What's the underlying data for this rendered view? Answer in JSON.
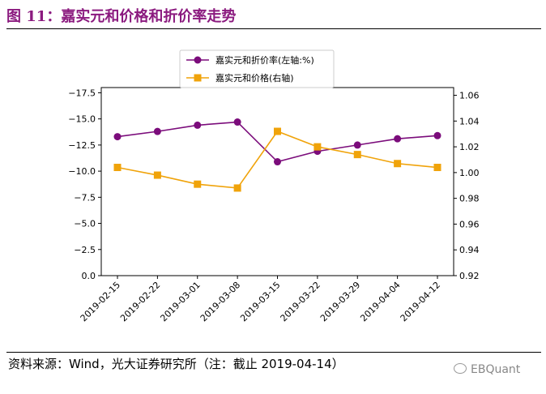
{
  "figure": {
    "title": "图 11：嘉实元和价格和折价率走势",
    "source": "资料来源：Wind，光大证券研究所（注：截止 2019-04-14）",
    "watermark": "EBQuant"
  },
  "chart_data": {
    "type": "line",
    "x": [
      "2019-02-15",
      "2019-02-22",
      "2019-03-01",
      "2019-03-08",
      "2019-03-15",
      "2019-03-22",
      "2019-03-29",
      "2019-04-04",
      "2019-04-12"
    ],
    "series": [
      {
        "name": "嘉实元和折价率(左轴:%)",
        "axis": "left",
        "color": "#7B0C7B",
        "marker": "circle",
        "values": [
          -13.3,
          -13.8,
          -14.4,
          -14.7,
          -10.9,
          -11.9,
          -12.5,
          -13.1,
          -13.4
        ]
      },
      {
        "name": "嘉实元和价格(右轴)",
        "axis": "right",
        "color": "#F0A30A",
        "marker": "square",
        "values": [
          1.004,
          0.998,
          0.991,
          0.988,
          1.032,
          1.02,
          1.014,
          1.007,
          1.004
        ]
      }
    ],
    "left_axis": {
      "range": [
        0,
        -18
      ],
      "inverted": true,
      "ticks": [
        0,
        -2.5,
        -5,
        -7.5,
        -10,
        -12.5,
        -15,
        -17.5
      ],
      "tick_labels": [
        "0.0",
        "−2.5",
        "−5.0",
        "−7.5",
        "−10.0",
        "−12.5",
        "−15.0",
        "−17.5"
      ]
    },
    "right_axis": {
      "range": [
        0.92,
        1.066
      ],
      "ticks": [
        0.92,
        0.94,
        0.96,
        0.98,
        1.0,
        1.02,
        1.04,
        1.06
      ],
      "tick_labels": [
        "0.92",
        "0.94",
        "0.96",
        "0.98",
        "1.00",
        "1.02",
        "1.04",
        "1.06"
      ]
    },
    "grid": false,
    "legend": "top-center"
  }
}
